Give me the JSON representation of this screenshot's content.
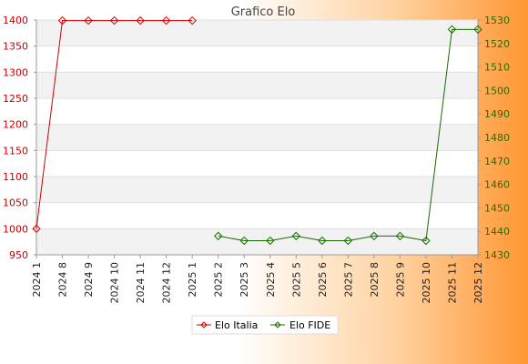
{
  "chart_data": {
    "type": "line",
    "title": "Grafico Elo",
    "xlabel": "",
    "categories": [
      "2024 1",
      "2024 8",
      "2024 9",
      "2024 10",
      "2024 11",
      "2024 12",
      "2025 1",
      "2025 2",
      "2025 3",
      "2025 4",
      "2025 5",
      "2025 6",
      "2025 7",
      "2025 8",
      "2025 9",
      "2025 10",
      "2025 11",
      "2025 12"
    ],
    "y_left": {
      "min": 950,
      "max": 1400,
      "step": 50,
      "ticks": [
        "950",
        "1000",
        "1050",
        "1100",
        "1150",
        "1200",
        "1250",
        "1300",
        "1350",
        "1400"
      ]
    },
    "y_right": {
      "min": 1430,
      "max": 1530,
      "step": 10,
      "ticks": [
        "1430",
        "1440",
        "1450",
        "1460",
        "1470",
        "1480",
        "1490",
        "1500",
        "1510",
        "1520",
        "1530"
      ]
    },
    "series": [
      {
        "name": "Elo Italia",
        "axis": "left",
        "color": "#cc0000",
        "values": [
          1000,
          1399,
          1399,
          1399,
          1399,
          1399,
          1399,
          null,
          null,
          null,
          null,
          null,
          null,
          null,
          null,
          null,
          null,
          null
        ]
      },
      {
        "name": "Elo FIDE",
        "axis": "right",
        "color": "#1a6b00",
        "values": [
          null,
          null,
          null,
          null,
          null,
          null,
          null,
          1438,
          1436,
          1436,
          1438,
          1436,
          1436,
          1438,
          1438,
          1436,
          1526,
          1526
        ]
      }
    ],
    "grid": true,
    "band_colors": [
      "#ffffff",
      "#f2f2f2"
    ],
    "legend_position": "bottom-center"
  }
}
